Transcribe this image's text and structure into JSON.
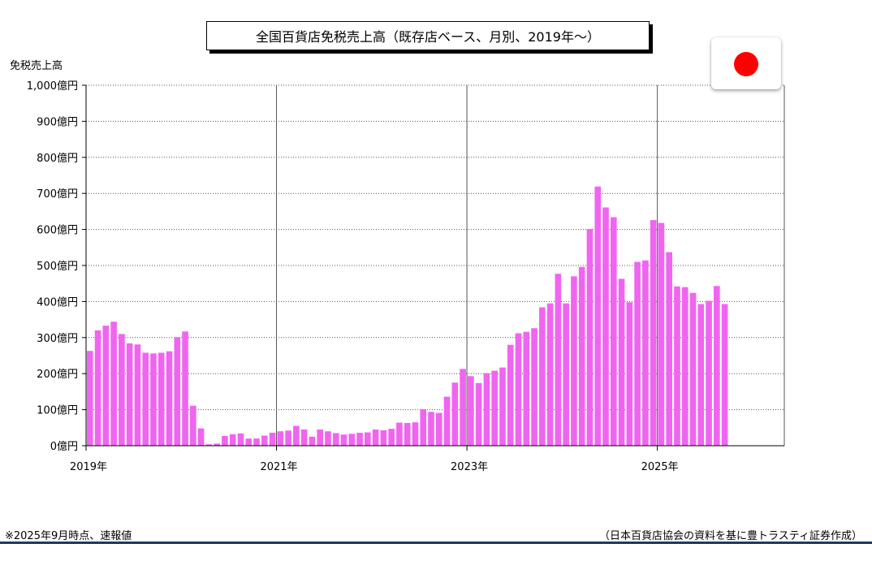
{
  "chart_data": {
    "type": "bar",
    "title": "全国百貨店免税売上高（既存店ベース、月別、2019年～）",
    "ylabel": "免税売上高",
    "ylim": [
      0,
      1000
    ],
    "y_ticks": [
      "0億円",
      "100億円",
      "200億円",
      "300億円",
      "400億円",
      "500億円",
      "600億円",
      "700億円",
      "800億円",
      "900億円",
      "1,000億円"
    ],
    "x_ticks": [
      "2019年",
      "2021年",
      "2023年",
      "2025年"
    ],
    "x_range": [
      "2019-01",
      "2026-04"
    ],
    "grid": true,
    "bar_color": "#f065f0",
    "categories": [
      "2019-01",
      "2019-02",
      "2019-03",
      "2019-04",
      "2019-05",
      "2019-06",
      "2019-07",
      "2019-08",
      "2019-09",
      "2019-10",
      "2019-11",
      "2019-12",
      "2020-01",
      "2020-02",
      "2020-03",
      "2020-04",
      "2020-05",
      "2020-06",
      "2020-07",
      "2020-08",
      "2020-09",
      "2020-10",
      "2020-11",
      "2020-12",
      "2021-01",
      "2021-02",
      "2021-03",
      "2021-04",
      "2021-05",
      "2021-06",
      "2021-07",
      "2021-08",
      "2021-09",
      "2021-10",
      "2021-11",
      "2021-12",
      "2022-01",
      "2022-02",
      "2022-03",
      "2022-04",
      "2022-05",
      "2022-06",
      "2022-07",
      "2022-08",
      "2022-09",
      "2022-10",
      "2022-11",
      "2022-12",
      "2023-01",
      "2023-02",
      "2023-03",
      "2023-04",
      "2023-05",
      "2023-06",
      "2023-07",
      "2023-08",
      "2023-09",
      "2023-10",
      "2023-11",
      "2023-12",
      "2024-01",
      "2024-02",
      "2024-03",
      "2024-04",
      "2024-05",
      "2024-06",
      "2024-07",
      "2024-08",
      "2024-09",
      "2024-10",
      "2024-11",
      "2024-12",
      "2025-01",
      "2025-02",
      "2025-03",
      "2025-04",
      "2025-05",
      "2025-06",
      "2025-07",
      "2025-08",
      "2025-09"
    ],
    "values": [
      263,
      320,
      333,
      344,
      310,
      284,
      281,
      258,
      256,
      258,
      262,
      301,
      317,
      111,
      48,
      4,
      6,
      27,
      32,
      34,
      20,
      20,
      28,
      36,
      40,
      42,
      55,
      45,
      25,
      45,
      40,
      35,
      31,
      33,
      36,
      37,
      45,
      43,
      47,
      64,
      63,
      65,
      101,
      94,
      91,
      136,
      175,
      213,
      193,
      174,
      201,
      208,
      217,
      280,
      312,
      316,
      326,
      384,
      395,
      477,
      395,
      470,
      496,
      601,
      719,
      661,
      634,
      463,
      398,
      510,
      514,
      626,
      618,
      537,
      442,
      440,
      424,
      393,
      402,
      443,
      393
    ]
  },
  "footnote": "※2025年9月時点、速報値",
  "source": "（日本百貨店協会の資料を基に豊トラスティ証券作成）",
  "flag": {
    "icon": "japan-flag-icon",
    "color": "#ff0000"
  },
  "colors": {
    "bottom_rule": "#1f3864"
  }
}
